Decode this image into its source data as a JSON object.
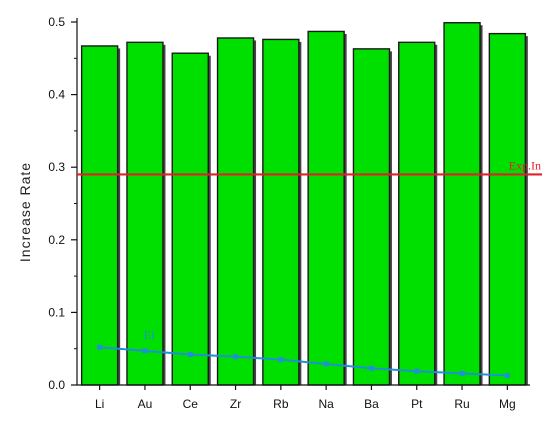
{
  "chart_data": {
    "type": "bar",
    "title": "",
    "xlabel": "",
    "ylabel": "Increase Rate",
    "ylim": [
      0.0,
      0.5
    ],
    "yticks": [
      "0.0",
      "0.1",
      "0.2",
      "0.3",
      "0.4",
      "0.5"
    ],
    "categories": [
      "Li",
      "Au",
      "Ce",
      "Zr",
      "Rb",
      "Na",
      "Ba",
      "Pt",
      "Ru",
      "Mg"
    ],
    "series": [
      {
        "values": [
          0.467,
          0.472,
          0.457,
          0.478,
          0.476,
          0.487,
          0.463,
          0.472,
          0.499,
          0.484
        ],
        "color": "#00e000"
      },
      {
        "name": "EI",
        "type": "line",
        "values": [
          0.052,
          0.047,
          0.042,
          0.039,
          0.035,
          0.029,
          0.023,
          0.019,
          0.016,
          0.013
        ],
        "color": "#1e90d6"
      }
    ],
    "reference_lines": [
      {
        "label": "Exp.In",
        "value": 0.29,
        "color": "#e0202a"
      }
    ],
    "grid": false,
    "legend": "none"
  }
}
